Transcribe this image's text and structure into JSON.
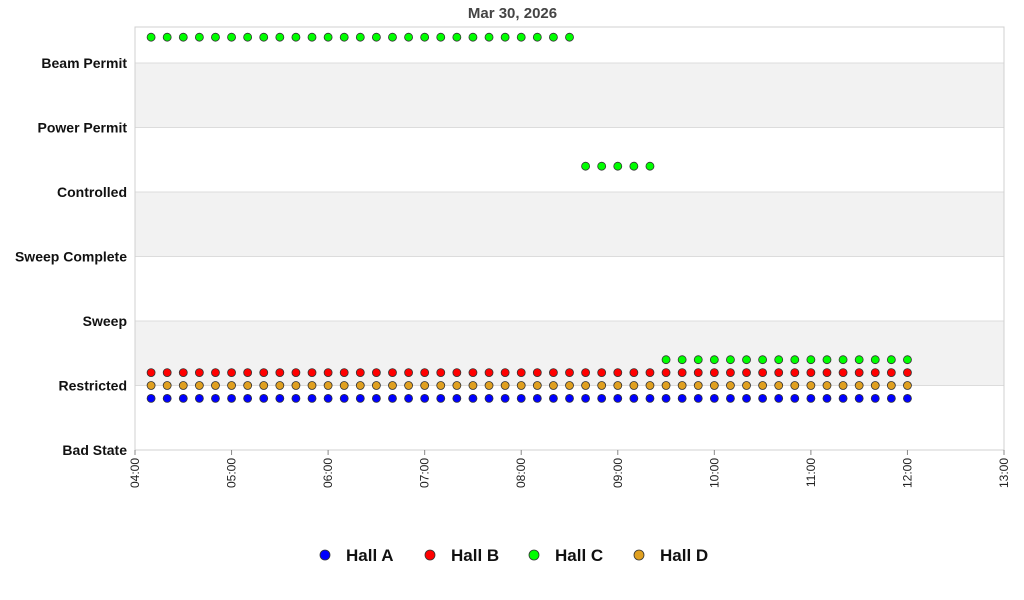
{
  "chart_data": {
    "type": "scatter",
    "title": "Mar 30, 2026",
    "xlabel": "",
    "ylabel": "",
    "x_ticks": [
      "04:00",
      "05:00",
      "06:00",
      "07:00",
      "08:00",
      "09:00",
      "10:00",
      "11:00",
      "12:00",
      "13:00"
    ],
    "xlim": [
      "04:00",
      "13:00"
    ],
    "y_categories": [
      "Bad State",
      "Restricted",
      "Sweep",
      "Sweep Complete",
      "Controlled",
      "Power Permit",
      "Beam Permit"
    ],
    "sample_interval_minutes": 10,
    "legend_position": "bottom",
    "series": [
      {
        "name": "Hall A",
        "color": "#0000ff",
        "segments": [
          {
            "state": "Restricted",
            "offset": -0.2,
            "start": "04:10",
            "end": "12:00"
          }
        ]
      },
      {
        "name": "Hall B",
        "color": "#ff0000",
        "segments": [
          {
            "state": "Restricted",
            "offset": 0.2,
            "start": "04:10",
            "end": "12:00"
          }
        ]
      },
      {
        "name": "Hall C",
        "color": "#00ff00",
        "segments": [
          {
            "state": "Beam Permit",
            "offset": 0.4,
            "start": "04:10",
            "end": "08:30"
          },
          {
            "state": "Controlled",
            "offset": 0.4,
            "start": "08:40",
            "end": "09:20"
          },
          {
            "state": "Restricted",
            "offset": 0.4,
            "start": "09:30",
            "end": "12:00"
          }
        ]
      },
      {
        "name": "Hall D",
        "color": "#e0a020",
        "segments": [
          {
            "state": "Restricted",
            "offset": 0.0,
            "start": "04:10",
            "end": "12:00"
          }
        ]
      }
    ]
  }
}
